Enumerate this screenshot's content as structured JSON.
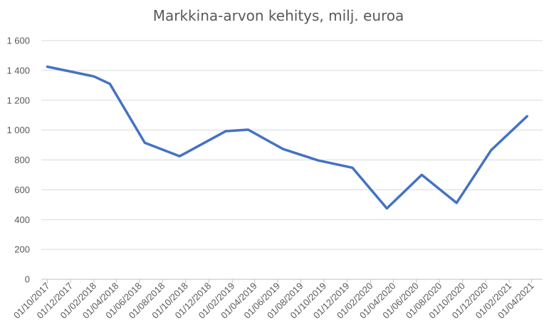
{
  "chart_data": {
    "type": "line",
    "title": "Markkina-arvon kehitys, milj. euroa",
    "xlabel": "",
    "ylabel": "",
    "ylim": [
      0,
      1600
    ],
    "yticks": [
      0,
      200,
      400,
      600,
      800,
      1000,
      1200,
      1400,
      1600
    ],
    "ytick_labels": [
      "0",
      "200",
      "400",
      "600",
      "800",
      "1 000",
      "1 200",
      "1 400",
      "1 600"
    ],
    "x_ticks": [
      "01/10/2017",
      "01/12/2017",
      "01/02/2018",
      "01/04/2018",
      "01/06/2018",
      "01/08/2018",
      "01/10/2018",
      "01/12/2018",
      "01/02/2019",
      "01/04/2019",
      "01/06/2019",
      "01/08/2019",
      "01/10/2019",
      "01/12/2019",
      "01/02/2020",
      "01/04/2020",
      "01/06/2020",
      "01/08/2020",
      "01/10/2020",
      "01/12/2020",
      "01/02/2021",
      "01/04/2021"
    ],
    "x_range": [
      "2017-09-15",
      "2021-04-30"
    ],
    "grid": true,
    "legend": "none",
    "series": [
      {
        "color": "#4472c4",
        "points": [
          {
            "x": "2017-10-01",
            "y": 1425
          },
          {
            "x": "2018-02-01",
            "y": 1360
          },
          {
            "x": "2018-03-15",
            "y": 1310
          },
          {
            "x": "2018-06-15",
            "y": 915
          },
          {
            "x": "2018-09-15",
            "y": 825
          },
          {
            "x": "2019-01-15",
            "y": 993
          },
          {
            "x": "2019-03-15",
            "y": 1003
          },
          {
            "x": "2019-06-15",
            "y": 873
          },
          {
            "x": "2019-09-15",
            "y": 797
          },
          {
            "x": "2019-12-15",
            "y": 748
          },
          {
            "x": "2020-03-15",
            "y": 475
          },
          {
            "x": "2020-06-15",
            "y": 700
          },
          {
            "x": "2020-09-15",
            "y": 512
          },
          {
            "x": "2020-12-15",
            "y": 865
          },
          {
            "x": "2021-03-20",
            "y": 1093
          }
        ]
      }
    ]
  }
}
